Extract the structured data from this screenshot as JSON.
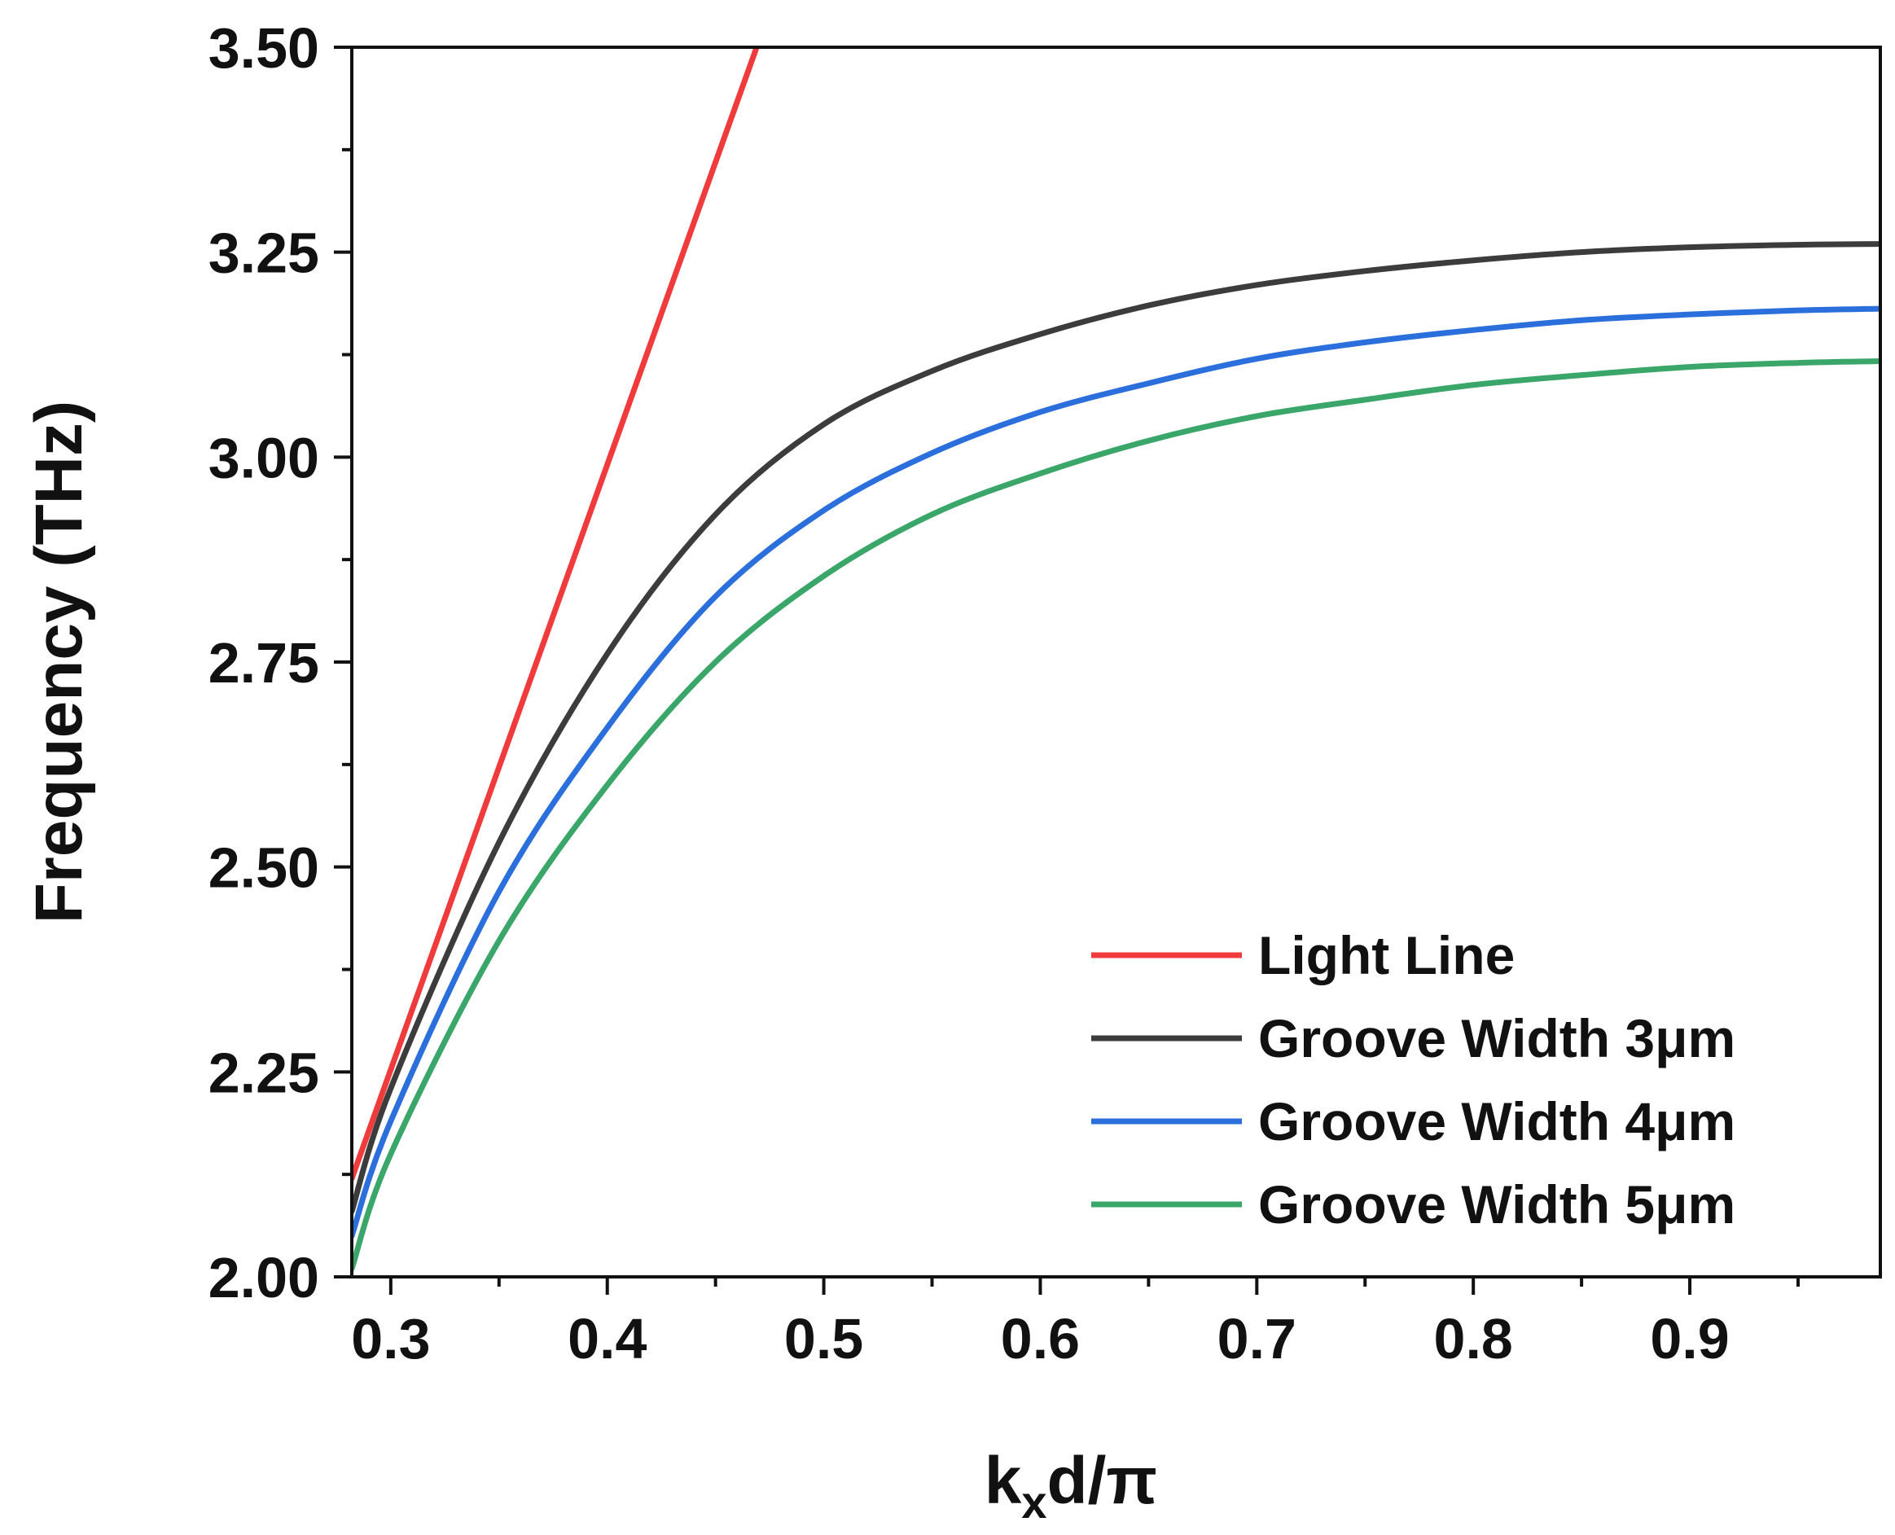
{
  "chart_data": {
    "type": "line",
    "title": "",
    "xlabel": {
      "main": "k",
      "sub": "x",
      "rest": "d/π"
    },
    "ylabel": "Frequency (THz)",
    "xlim": [
      0.282,
      0.988
    ],
    "ylim": [
      2.0,
      3.5
    ],
    "x_ticks": [
      {
        "value": 0.3,
        "label": "0.3"
      },
      {
        "value": 0.4,
        "label": "0.4"
      },
      {
        "value": 0.5,
        "label": "0.5"
      },
      {
        "value": 0.6,
        "label": "0.6"
      },
      {
        "value": 0.7,
        "label": "0.7"
      },
      {
        "value": 0.8,
        "label": "0.8"
      },
      {
        "value": 0.9,
        "label": "0.9"
      }
    ],
    "y_ticks": [
      {
        "value": 2.0,
        "label": "2.00"
      },
      {
        "value": 2.25,
        "label": "2.25"
      },
      {
        "value": 2.5,
        "label": "2.50"
      },
      {
        "value": 2.75,
        "label": "2.75"
      },
      {
        "value": 3.0,
        "label": "3.00"
      },
      {
        "value": 3.25,
        "label": "3.25"
      },
      {
        "value": 3.5,
        "label": "3.50"
      }
    ],
    "x_minor_step": 0.05,
    "y_minor_step": 0.125,
    "legend_position": "bottom-right",
    "series": [
      {
        "name": "Light Line",
        "color": "#ef3b3b",
        "x": [
          0.282,
          0.469
        ],
        "y": [
          2.12,
          3.5
        ]
      },
      {
        "name": "Groove Width 3μm",
        "color": "#3c3c3c",
        "x": [
          0.282,
          0.3,
          0.35,
          0.4,
          0.45,
          0.5,
          0.55,
          0.6,
          0.65,
          0.7,
          0.75,
          0.8,
          0.85,
          0.9,
          0.95,
          0.988
        ],
        "y": [
          2.08,
          2.23,
          2.53,
          2.76,
          2.93,
          3.04,
          3.105,
          3.15,
          3.185,
          3.21,
          3.227,
          3.24,
          3.25,
          3.256,
          3.259,
          3.26
        ]
      },
      {
        "name": "Groove Width 4μm",
        "color": "#2b6fdd",
        "x": [
          0.282,
          0.3,
          0.35,
          0.4,
          0.45,
          0.5,
          0.55,
          0.6,
          0.65,
          0.7,
          0.75,
          0.8,
          0.85,
          0.9,
          0.95,
          0.988
        ],
        "y": [
          2.05,
          2.19,
          2.47,
          2.67,
          2.83,
          2.935,
          3.005,
          3.055,
          3.09,
          3.12,
          3.14,
          3.155,
          3.167,
          3.174,
          3.179,
          3.181
        ]
      },
      {
        "name": "Groove Width 5μm",
        "color": "#3aa66a",
        "x": [
          0.282,
          0.3,
          0.35,
          0.4,
          0.45,
          0.5,
          0.55,
          0.6,
          0.65,
          0.7,
          0.75,
          0.8,
          0.85,
          0.9,
          0.95,
          0.988
        ],
        "y": [
          2.01,
          2.15,
          2.41,
          2.6,
          2.75,
          2.855,
          2.93,
          2.98,
          3.02,
          3.05,
          3.07,
          3.088,
          3.1,
          3.11,
          3.115,
          3.117
        ]
      }
    ]
  }
}
